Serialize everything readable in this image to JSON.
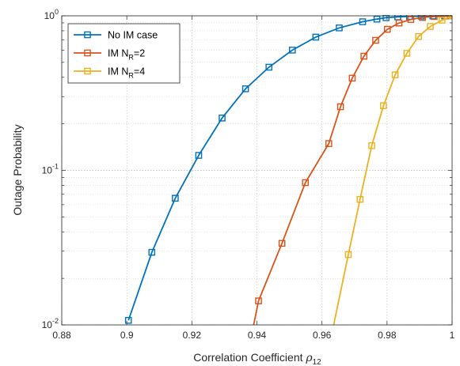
{
  "chart_data": {
    "type": "line",
    "xlabel": "Correlation Coefficient",
    "xlabel_symbol": "ρ",
    "xlabel_sub": "12",
    "ylabel": "Outage Probability",
    "xlim": [
      0.88,
      1.0
    ],
    "ylim": [
      0.01,
      1.0
    ],
    "yscale": "log",
    "grid": true,
    "legend_position": "top-left",
    "x_ticks": [
      "0.88",
      "0.9",
      "0.92",
      "0.94",
      "0.96",
      "0.98",
      "1"
    ],
    "y_ticks": [
      {
        "base": "10",
        "exp": "-2"
      },
      {
        "base": "10",
        "exp": "-1"
      },
      {
        "base": "10",
        "exp": "0"
      }
    ],
    "series": [
      {
        "name": "No IM case",
        "legend_main": "No IM case",
        "legend_sub": "",
        "legend_suffix": "",
        "color": "#0072BD",
        "x": [
          0.9005,
          0.9077,
          0.9149,
          0.9221,
          0.9293,
          0.9365,
          0.9437,
          0.9509,
          0.9581,
          0.9653,
          0.9725,
          0.9769,
          0.9797,
          0.9833,
          0.9869,
          0.9905,
          0.9941,
          0.9977,
          1.0
        ],
        "y": [
          0.0107,
          0.0295,
          0.066,
          0.125,
          0.218,
          0.337,
          0.465,
          0.6,
          0.728,
          0.835,
          0.915,
          0.952,
          0.972,
          0.984,
          0.991,
          0.995,
          0.998,
          0.999,
          1.0
        ]
      },
      {
        "name": "IM NR=2",
        "legend_main": "IM N",
        "legend_sub": "R",
        "legend_suffix": "=2",
        "color": "#D95319",
        "x": [
          0.9405,
          0.9477,
          0.9549,
          0.9621,
          0.9657,
          0.9693,
          0.9729,
          0.9765,
          0.9801,
          0.9837,
          0.9873,
          0.9909,
          0.9945,
          0.9981,
          1.0
        ],
        "y": [
          0.0143,
          0.0337,
          0.0833,
          0.149,
          0.258,
          0.395,
          0.548,
          0.694,
          0.818,
          0.898,
          0.947,
          0.975,
          0.99,
          0.997,
          1.0
        ]
      },
      {
        "name": "IM NR=4",
        "legend_main": "IM N",
        "legend_sub": "R",
        "legend_suffix": "=4",
        "color": "#EDB120",
        "x": [
          0.9681,
          0.9717,
          0.9753,
          0.9789,
          0.9825,
          0.9861,
          0.9897,
          0.9933,
          0.9969,
          1.0
        ],
        "y": [
          0.0285,
          0.0649,
          0.1445,
          0.262,
          0.415,
          0.572,
          0.735,
          0.853,
          0.937,
          1.0
        ]
      }
    ],
    "line_segments": [
      {
        "series": 1,
        "x": [
          0.939,
          0.9405
        ],
        "y": [
          0.01,
          0.0143
        ]
      },
      {
        "series": 2,
        "x": [
          0.9636,
          0.9681
        ],
        "y": [
          0.01,
          0.0285
        ]
      },
      {
        "series": 2,
        "x": [
          0.9969,
          0.9999
        ],
        "y": [
          0.937,
          0.985
        ]
      }
    ]
  }
}
